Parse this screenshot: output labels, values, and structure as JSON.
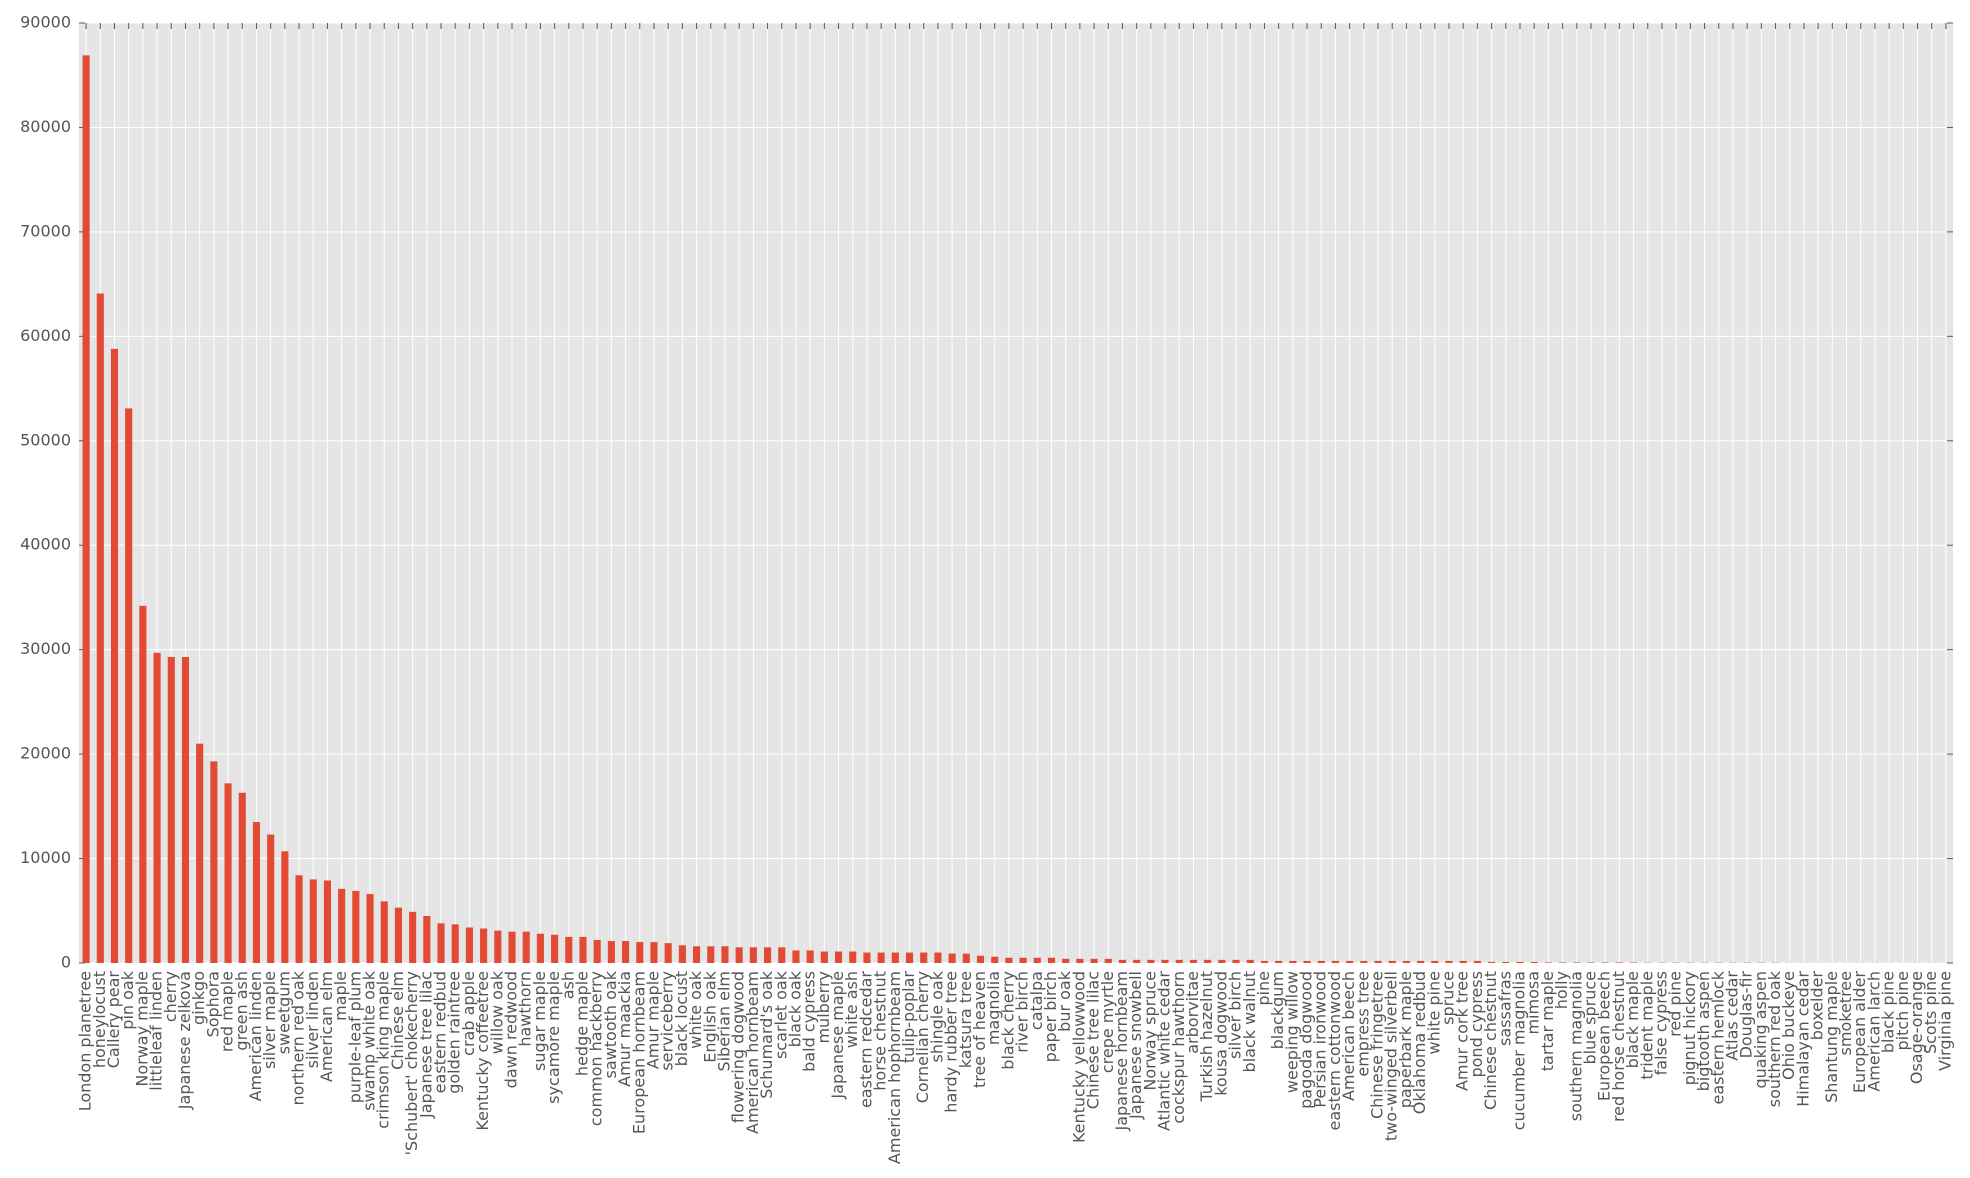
{
  "chart_data": {
    "type": "bar",
    "categories": [
      "London planetree",
      "honeylocust",
      "Callery pear",
      "pin oak",
      "Norway maple",
      "littleleaf linden",
      "cherry",
      "Japanese zelkova",
      "ginkgo",
      "Sophora",
      "red maple",
      "green ash",
      "American linden",
      "silver maple",
      "sweetgum",
      "northern red oak",
      "silver linden",
      "American elm",
      "maple",
      "purple-leaf plum",
      "swamp white oak",
      "crimson king maple",
      "Chinese elm",
      "'Schubert' chokecherry",
      "Japanese tree lilac",
      "eastern redbud",
      "golden raintree",
      "crab apple",
      "Kentucky coffeetree",
      "willow oak",
      "dawn redwood",
      "hawthorn",
      "sugar maple",
      "sycamore maple",
      "ash",
      "hedge maple",
      "common hackberry",
      "sawtooth oak",
      "Amur maackia",
      "European hornbeam",
      "Amur maple",
      "serviceberry",
      "black locust",
      "white oak",
      "English oak",
      "Siberian elm",
      "flowering dogwood",
      "American hornbeam",
      "Schumard's oak",
      "scarlet oak",
      "black oak",
      "bald cypress",
      "mulberry",
      "Japanese maple",
      "white ash",
      "eastern redcedar",
      "horse chestnut",
      "American hophornbeam",
      "tulip-poplar",
      "Cornelian cherry",
      "shingle oak",
      "hardy rubber tree",
      "katsura tree",
      "tree of heaven",
      "magnolia",
      "black cherry",
      "river birch",
      "catalpa",
      "paper birch",
      "bur oak",
      "Kentucky yellowwood",
      "Chinese tree lilac",
      "crepe myrtle",
      "Japanese hornbeam",
      "Japanese snowbell",
      "Norway spruce",
      "Atlantic white cedar",
      "cockspur hawthorn",
      "arborvitae",
      "Turkish hazelnut",
      "kousa dogwood",
      "silver birch",
      "black walnut",
      "pine",
      "blackgum",
      "weeping willow",
      "pagoda dogwood",
      "Persian ironwood",
      "eastern cottonwood",
      "American beech",
      "empress tree",
      "Chinese fringetree",
      "two-winged silverbell",
      "paperbark maple",
      "Oklahoma redbud",
      "white pine",
      "spruce",
      "Amur cork tree",
      "pond cypress",
      "Chinese chestnut",
      "sassafras",
      "cucumber magnolia",
      "mimosa",
      "tartar maple",
      "holly",
      "southern magnolia",
      "blue spruce",
      "European beech",
      "red horse chestnut",
      "black maple",
      "trident maple",
      "false cypress",
      "red pine",
      "pignut hickory",
      "bigtooth aspen",
      "eastern hemlock",
      "Atlas cedar",
      "Douglas-fir",
      "quaking aspen",
      "southern red oak",
      "Ohio buckeye",
      "Himalayan cedar",
      "boxelder",
      "Shantung maple",
      "smoketree",
      "European alder",
      "American larch",
      "black pine",
      "pitch pine",
      "Osage-orange",
      "Scots pine",
      "Virginia pine"
    ],
    "values": [
      86900,
      64100,
      58800,
      53100,
      34200,
      29700,
      29300,
      29300,
      21000,
      19300,
      17200,
      16300,
      13500,
      12300,
      10700,
      8400,
      8000,
      7900,
      7100,
      6900,
      6600,
      5900,
      5300,
      4900,
      4500,
      3800,
      3700,
      3400,
      3300,
      3100,
      3000,
      3000,
      2800,
      2700,
      2500,
      2500,
      2200,
      2100,
      2100,
      2000,
      2000,
      1900,
      1700,
      1600,
      1600,
      1600,
      1500,
      1500,
      1500,
      1500,
      1200,
      1200,
      1100,
      1100,
      1100,
      1000,
      1000,
      1000,
      1000,
      1000,
      1000,
      900,
      900,
      700,
      600,
      500,
      500,
      500,
      500,
      400,
      400,
      400,
      400,
      300,
      300,
      300,
      300,
      300,
      300,
      300,
      300,
      300,
      300,
      200,
      200,
      200,
      200,
      200,
      200,
      200,
      200,
      200,
      200,
      200,
      200,
      200,
      200,
      200,
      200,
      100,
      100,
      100,
      100,
      50,
      50,
      50,
      50,
      50,
      50,
      50,
      30,
      30,
      30,
      30,
      30,
      30,
      30,
      30,
      30,
      30,
      10,
      10,
      10,
      10,
      10,
      10,
      10,
      10,
      10,
      10,
      10,
      10
    ],
    "color": "#e24a33",
    "ylim": [
      0,
      90000
    ],
    "yticks": [
      0,
      10000,
      20000,
      30000,
      40000,
      50000,
      60000,
      70000,
      80000,
      90000
    ],
    "grid": true
  }
}
